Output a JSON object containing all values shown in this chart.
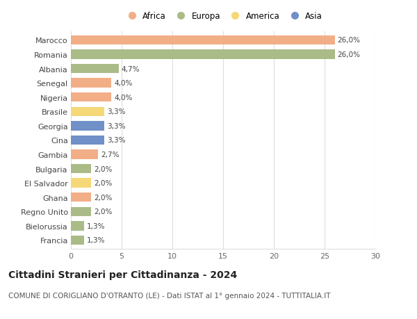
{
  "countries": [
    "Marocco",
    "Romania",
    "Albania",
    "Senegal",
    "Nigeria",
    "Brasile",
    "Georgia",
    "Cina",
    "Gambia",
    "Bulgaria",
    "El Salvador",
    "Ghana",
    "Regno Unito",
    "Bielorussia",
    "Francia"
  ],
  "values": [
    26.0,
    26.0,
    4.7,
    4.0,
    4.0,
    3.3,
    3.3,
    3.3,
    2.7,
    2.0,
    2.0,
    2.0,
    2.0,
    1.3,
    1.3
  ],
  "labels": [
    "26,0%",
    "26,0%",
    "4,7%",
    "4,0%",
    "4,0%",
    "3,3%",
    "3,3%",
    "3,3%",
    "2,7%",
    "2,0%",
    "2,0%",
    "2,0%",
    "2,0%",
    "1,3%",
    "1,3%"
  ],
  "continents": [
    "Africa",
    "Europa",
    "Europa",
    "Africa",
    "Africa",
    "America",
    "Asia",
    "Asia",
    "Africa",
    "Europa",
    "America",
    "Africa",
    "Europa",
    "Europa",
    "Europa"
  ],
  "continent_colors": {
    "Africa": "#F2AE87",
    "Europa": "#AABB88",
    "America": "#F5D878",
    "Asia": "#7090C8"
  },
  "legend_order": [
    "Africa",
    "Europa",
    "America",
    "Asia"
  ],
  "xlim": [
    0,
    30
  ],
  "xticks": [
    0,
    5,
    10,
    15,
    20,
    25,
    30
  ],
  "title": "Cittadini Stranieri per Cittadinanza - 2024",
  "subtitle": "COMUNE DI CORIGLIANO D'OTRANTO (LE) - Dati ISTAT al 1° gennaio 2024 - TUTTITALIA.IT",
  "bg_color": "#ffffff",
  "grid_color": "#dddddd",
  "bar_height": 0.65,
  "label_fontsize": 7.5,
  "title_fontsize": 10,
  "subtitle_fontsize": 7.5,
  "tick_fontsize": 8
}
